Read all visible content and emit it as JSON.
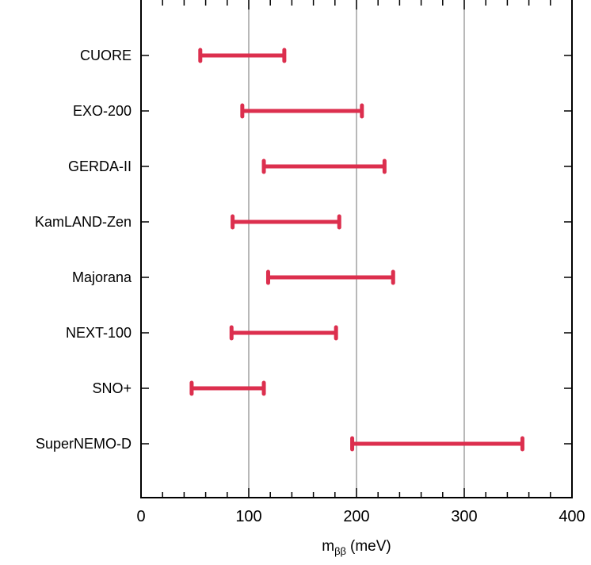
{
  "chart_data": {
    "type": "range-bar",
    "orientation": "horizontal",
    "xlabel": {
      "main": "m",
      "subscript": "ββ",
      "unit": "(meV)"
    },
    "xlim": [
      0,
      400
    ],
    "xticks": [
      "0",
      "100",
      "200",
      "300",
      "400"
    ],
    "grid_x": [
      100,
      200,
      300
    ],
    "color": "#dc2f4e",
    "categories": [
      "CUORE",
      "EXO-200",
      "GERDA-II",
      "KamLAND-Zen",
      "Majorana",
      "NEXT-100",
      "SNO+",
      "SuperNEMO-D"
    ],
    "ranges": [
      {
        "low": 55,
        "high": 133
      },
      {
        "low": 94,
        "high": 205
      },
      {
        "low": 114,
        "high": 226
      },
      {
        "low": 85,
        "high": 184
      },
      {
        "low": 118,
        "high": 234
      },
      {
        "low": 84,
        "high": 181
      },
      {
        "low": 47,
        "high": 114
      },
      {
        "low": 196,
        "high": 354
      }
    ]
  }
}
